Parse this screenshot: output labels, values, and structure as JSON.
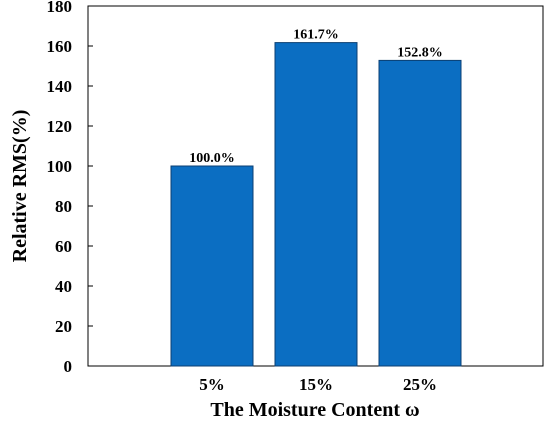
{
  "chart_data": {
    "type": "bar",
    "categories": [
      "5%",
      "15%",
      "25%"
    ],
    "values": [
      100.0,
      161.7,
      152.8
    ],
    "data_labels": [
      "100.0%",
      "161.7%",
      "152.8%"
    ],
    "xlabel": "The Moisture Content ω",
    "ylabel": "Relative RMS(%)",
    "ylim": [
      0,
      180
    ],
    "yticks": [
      0,
      20,
      40,
      60,
      80,
      100,
      120,
      140,
      160,
      180
    ],
    "grid": false,
    "bar_color": "#0b6ec2",
    "bar_edge_color": "#0b3f73"
  }
}
